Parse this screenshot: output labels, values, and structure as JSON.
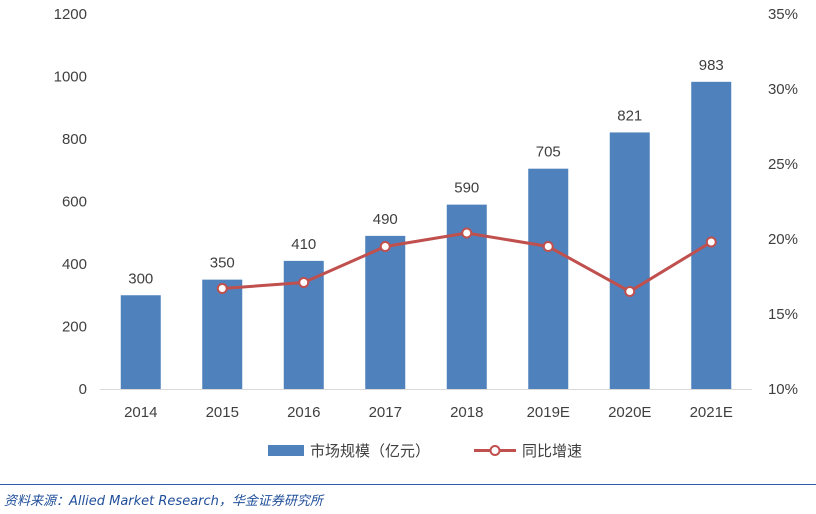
{
  "chart_data": {
    "type": "bar",
    "categories": [
      "2014",
      "2015",
      "2016",
      "2017",
      "2018",
      "2019E",
      "2020E",
      "2021E"
    ],
    "series": [
      {
        "name": "市场规模（亿元）",
        "type": "bar",
        "axis": "left",
        "color": "#4f81bd",
        "values": [
          300,
          350,
          410,
          490,
          590,
          705,
          821,
          983
        ]
      },
      {
        "name": "同比增速",
        "type": "line",
        "axis": "right",
        "color": "#c0504d",
        "values": [
          null,
          16.7,
          17.1,
          19.5,
          20.4,
          19.5,
          16.5,
          19.8
        ]
      }
    ],
    "y_left": {
      "min": 0,
      "max": 1200,
      "ticks": [
        "0",
        "200",
        "400",
        "600",
        "800",
        "1000",
        "1200"
      ]
    },
    "y_right": {
      "min": 10,
      "max": 35,
      "ticks": [
        "10%",
        "15%",
        "20%",
        "25%",
        "30%",
        "35%"
      ]
    },
    "grid": false,
    "legend_position": "bottom"
  },
  "source": "资料来源：Allied Market Research，华金证券研究所"
}
